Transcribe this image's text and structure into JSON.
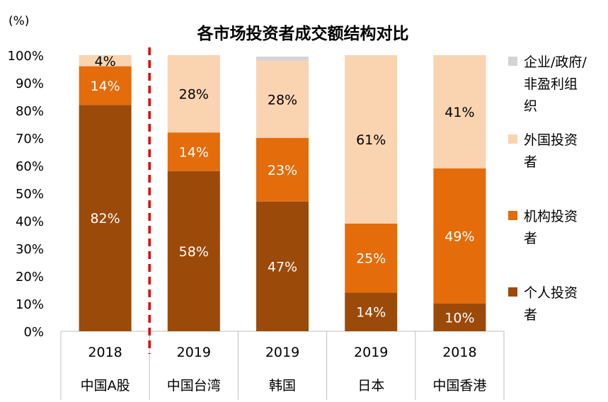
{
  "chart_data": {
    "type": "bar",
    "stacked": true,
    "title": "各市场投资者成交额结构对比",
    "ylabel": "(%)",
    "ylim": [
      0,
      100
    ],
    "yticks": [
      "0%",
      "10%",
      "20%",
      "30%",
      "40%",
      "50%",
      "60%",
      "70%",
      "80%",
      "90%",
      "100%"
    ],
    "categories": [
      {
        "year": "2018",
        "market": "中国A股"
      },
      {
        "year": "2019",
        "market": "中国台湾"
      },
      {
        "year": "2019",
        "market": "韩国"
      },
      {
        "year": "2019",
        "market": "日本"
      },
      {
        "year": "2018",
        "market": "中国香港"
      }
    ],
    "series": [
      {
        "name": "个人投资者",
        "color": "#9B4A0A",
        "label_color": "#ffffff",
        "values": [
          82,
          58,
          47,
          14,
          10
        ],
        "labels": [
          "82%",
          "58%",
          "47%",
          "14%",
          "10%"
        ]
      },
      {
        "name": "机构投资者",
        "color": "#E46C0A",
        "label_color": "#ffffff",
        "values": [
          14,
          14,
          23,
          25,
          49
        ],
        "labels": [
          "14%",
          "14%",
          "23%",
          "25%",
          "49%"
        ]
      },
      {
        "name": "外国投资者",
        "color": "#FAD3B1",
        "label_color": "#000000",
        "values": [
          4,
          28,
          28,
          61,
          41
        ],
        "labels": [
          "4%",
          "28%",
          "28%",
          "61%",
          "41%"
        ]
      },
      {
        "name": "企业/政府/非盈利组织",
        "color": "#D4D4D4",
        "label_color": "#000000",
        "values": [
          0,
          0,
          1.5,
          0,
          0
        ],
        "labels": [
          "",
          "",
          "",
          "",
          ""
        ]
      }
    ],
    "legend_position": "right",
    "legend_order": [
      3,
      2,
      1,
      0
    ],
    "legend_lines": [
      [
        "企业/政府/",
        "非盈利组",
        "织"
      ],
      [
        "外国投资",
        "者"
      ],
      [
        "机构投资",
        "者"
      ],
      [
        "个人投资",
        "者"
      ]
    ],
    "divider": {
      "after_category": 0,
      "color": "#E00000",
      "style": "dashed"
    },
    "grid": false
  }
}
